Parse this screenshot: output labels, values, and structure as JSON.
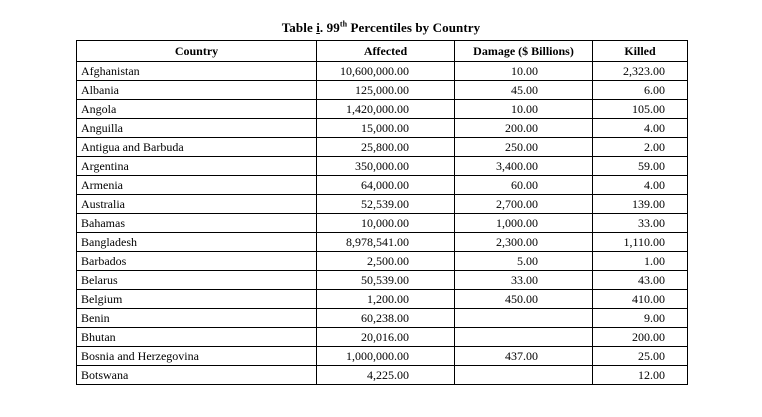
{
  "caption": {
    "prefix": "Table ",
    "roman": "i",
    "mid": ". 99",
    "sup": "th",
    "suffix": " Percentiles by Country"
  },
  "columns": {
    "country": "Country",
    "affected": "Affected",
    "damage": "Damage ($ Billions)",
    "killed": "Killed"
  },
  "rows": [
    {
      "country": "Afghanistan",
      "affected": "10,600,000.00",
      "damage": "10.00",
      "killed": "2,323.00"
    },
    {
      "country": "Albania",
      "affected": "125,000.00",
      "damage": "45.00",
      "killed": "6.00"
    },
    {
      "country": "Angola",
      "affected": "1,420,000.00",
      "damage": "10.00",
      "killed": "105.00"
    },
    {
      "country": "Anguilla",
      "affected": "15,000.00",
      "damage": "200.00",
      "killed": "4.00"
    },
    {
      "country": "Antigua and Barbuda",
      "affected": "25,800.00",
      "damage": "250.00",
      "killed": "2.00"
    },
    {
      "country": "Argentina",
      "affected": "350,000.00",
      "damage": "3,400.00",
      "killed": "59.00"
    },
    {
      "country": "Armenia",
      "affected": "64,000.00",
      "damage": "60.00",
      "killed": "4.00"
    },
    {
      "country": "Australia",
      "affected": "52,539.00",
      "damage": "2,700.00",
      "killed": "139.00"
    },
    {
      "country": "Bahamas",
      "affected": "10,000.00",
      "damage": "1,000.00",
      "killed": "33.00"
    },
    {
      "country": "Bangladesh",
      "affected": "8,978,541.00",
      "damage": "2,300.00",
      "killed": "1,110.00"
    },
    {
      "country": "Barbados",
      "affected": "2,500.00",
      "damage": "5.00",
      "killed": "1.00"
    },
    {
      "country": "Belarus",
      "affected": "50,539.00",
      "damage": "33.00",
      "killed": "43.00"
    },
    {
      "country": "Belgium",
      "affected": "1,200.00",
      "damage": "450.00",
      "killed": "410.00"
    },
    {
      "country": "Benin",
      "affected": "60,238.00",
      "damage": "",
      "killed": "9.00"
    },
    {
      "country": "Bhutan",
      "affected": "20,016.00",
      "damage": "",
      "killed": "200.00"
    },
    {
      "country": "Bosnia and Herzegovina",
      "affected": "1,000,000.00",
      "damage": "437.00",
      "killed": "25.00"
    },
    {
      "country": "Botswana",
      "affected": "4,225.00",
      "damage": "",
      "killed": "12.00"
    }
  ]
}
